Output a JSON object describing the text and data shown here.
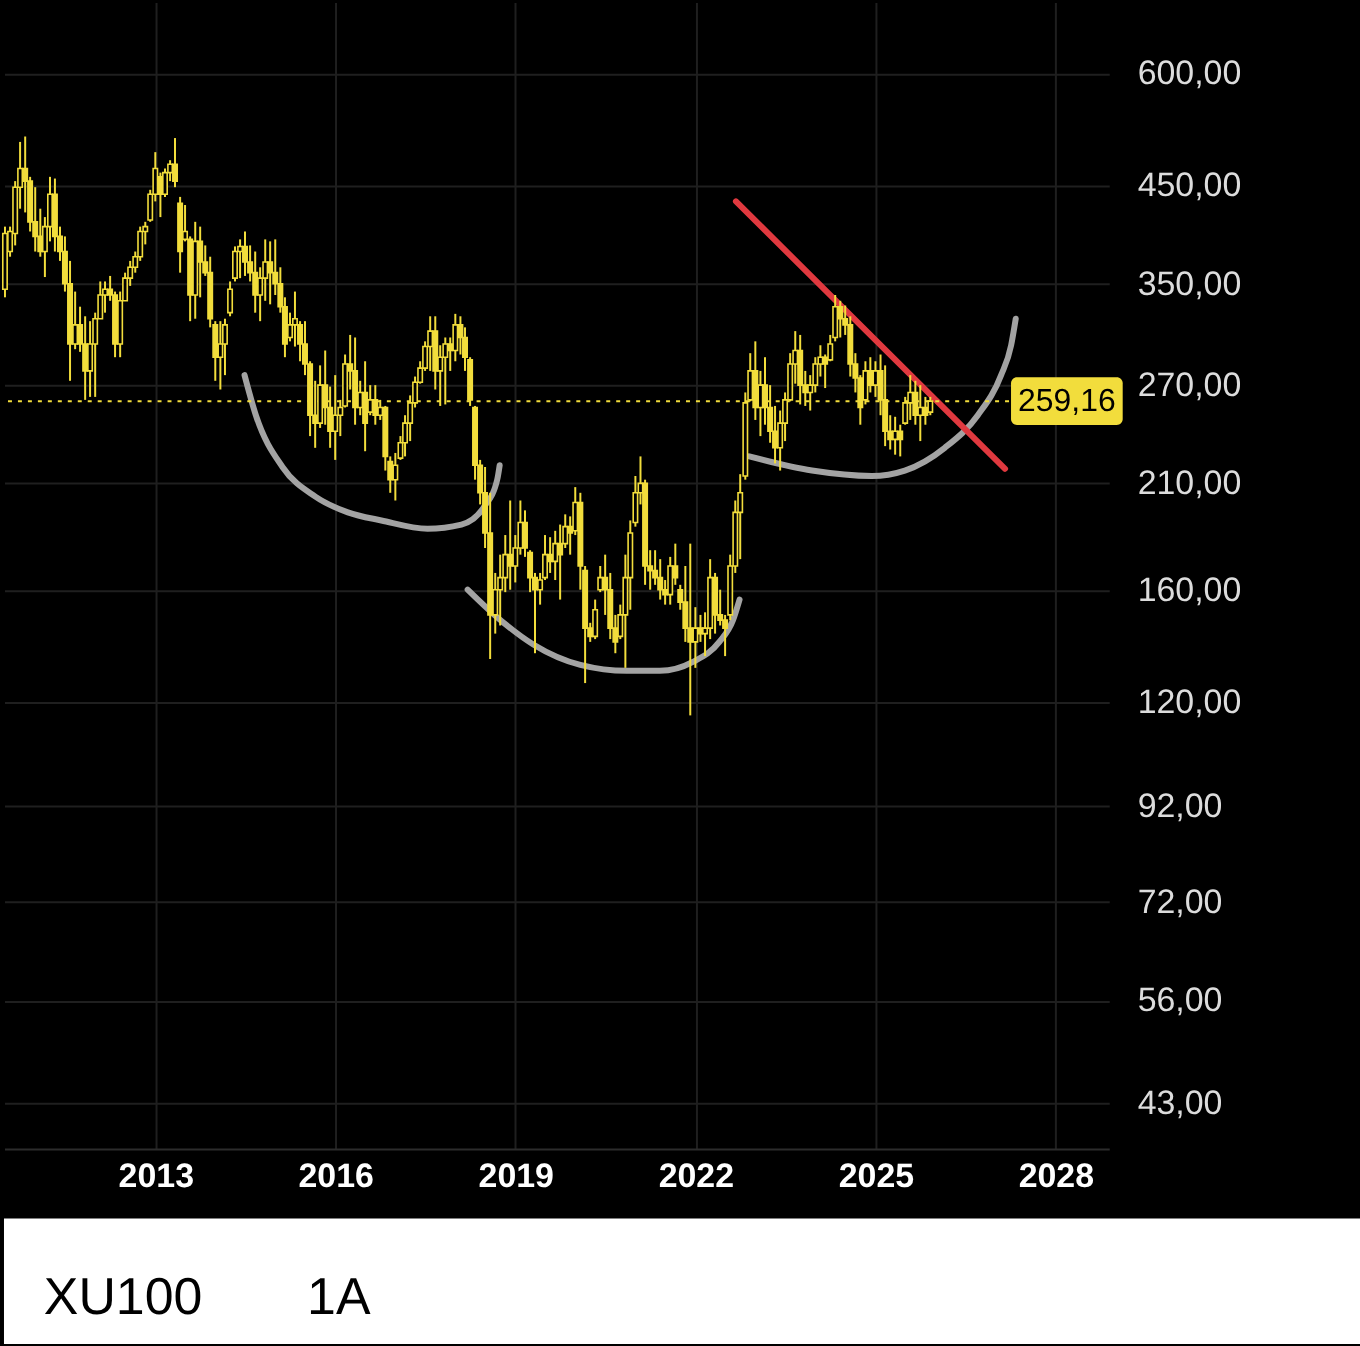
{
  "chart_data": {
    "type": "candlestick",
    "title": "XU100",
    "subtitle": "1A",
    "x": [
      "2010-07",
      "2010-08",
      "2010-09",
      "2010-10",
      "2010-11",
      "2010-12",
      "2011-01",
      "2011-02",
      "2011-03",
      "2011-04",
      "2011-05",
      "2011-06",
      "2011-07",
      "2011-08",
      "2011-09",
      "2011-10",
      "2011-11",
      "2011-12",
      "2012-01",
      "2012-02",
      "2012-03",
      "2012-04",
      "2012-05",
      "2012-06",
      "2012-07",
      "2012-08",
      "2012-09",
      "2012-10",
      "2012-11",
      "2012-12",
      "2013-01",
      "2013-02",
      "2013-03",
      "2013-04",
      "2013-05",
      "2013-06",
      "2013-07",
      "2013-08",
      "2013-09",
      "2013-10",
      "2013-11",
      "2013-12",
      "2014-01",
      "2014-02",
      "2014-03",
      "2014-04",
      "2014-05",
      "2014-06",
      "2014-07",
      "2014-08",
      "2014-09",
      "2014-10",
      "2014-11",
      "2014-12",
      "2015-01",
      "2015-02",
      "2015-03",
      "2015-04",
      "2015-05",
      "2015-06",
      "2015-07",
      "2015-08",
      "2015-09",
      "2015-10",
      "2015-11",
      "2015-12",
      "2016-01",
      "2016-02",
      "2016-03",
      "2016-04",
      "2016-05",
      "2016-06",
      "2016-07",
      "2016-08",
      "2016-09",
      "2016-10",
      "2016-11",
      "2016-12",
      "2017-01",
      "2017-02",
      "2017-03",
      "2017-04",
      "2017-05",
      "2017-06",
      "2017-07",
      "2017-08",
      "2017-09",
      "2017-10",
      "2017-11",
      "2017-12",
      "2018-01",
      "2018-02",
      "2018-03",
      "2018-04",
      "2018-05",
      "2018-06",
      "2018-07",
      "2018-08",
      "2018-09",
      "2018-10",
      "2018-11",
      "2018-12",
      "2019-01",
      "2019-02",
      "2019-03",
      "2019-04",
      "2019-05",
      "2019-06",
      "2019-07",
      "2019-08",
      "2019-09",
      "2019-10",
      "2019-11",
      "2019-12",
      "2020-01",
      "2020-02",
      "2020-03",
      "2020-04",
      "2020-05",
      "2020-06",
      "2020-07",
      "2020-08",
      "2020-09",
      "2020-10",
      "2020-11",
      "2020-12",
      "2021-01",
      "2021-02",
      "2021-03",
      "2021-04",
      "2021-05",
      "2021-06",
      "2021-07",
      "2021-08",
      "2021-09",
      "2021-10",
      "2021-11",
      "2021-12",
      "2022-01",
      "2022-02",
      "2022-03",
      "2022-04",
      "2022-05",
      "2022-06",
      "2022-07",
      "2022-08",
      "2022-09",
      "2022-10",
      "2022-11",
      "2022-12",
      "2023-01",
      "2023-02",
      "2023-03",
      "2023-04",
      "2023-05",
      "2023-06",
      "2023-07",
      "2023-08",
      "2023-09",
      "2023-10",
      "2023-11",
      "2023-12",
      "2024-01",
      "2024-02",
      "2024-03",
      "2024-04",
      "2024-05",
      "2024-06",
      "2024-07",
      "2024-08",
      "2024-09",
      "2024-10",
      "2024-11",
      "2024-12",
      "2025-01",
      "2025-02",
      "2025-03",
      "2025-04",
      "2025-05",
      "2025-06",
      "2025-07",
      "2025-08",
      "2025-09",
      "2025-10",
      "2025-11",
      "2025-12"
    ],
    "ohlc": [
      [
        345,
        405,
        338,
        398
      ],
      [
        380,
        405,
        375,
        400
      ],
      [
        398,
        455,
        386,
        448
      ],
      [
        448,
        503,
        424,
        470
      ],
      [
        470,
        510,
        420,
        455
      ],
      [
        455,
        460,
        400,
        410
      ],
      [
        410,
        448,
        380,
        395
      ],
      [
        395,
        424,
        375,
        380
      ],
      [
        380,
        415,
        356,
        405
      ],
      [
        405,
        460,
        390,
        440
      ],
      [
        440,
        458,
        380,
        395
      ],
      [
        395,
        405,
        371,
        380
      ],
      [
        380,
        395,
        343,
        350
      ],
      [
        350,
        371,
        273,
        300
      ],
      [
        300,
        343,
        296,
        315
      ],
      [
        315,
        330,
        294,
        300
      ],
      [
        300,
        322,
        260,
        280
      ],
      [
        280,
        318,
        262,
        300
      ],
      [
        300,
        325,
        262,
        320
      ],
      [
        320,
        352,
        320,
        340
      ],
      [
        340,
        352,
        325,
        345
      ],
      [
        345,
        357,
        335,
        340
      ],
      [
        340,
        343,
        290,
        300
      ],
      [
        300,
        343,
        290,
        335
      ],
      [
        335,
        360,
        335,
        355
      ],
      [
        355,
        371,
        348,
        365
      ],
      [
        365,
        380,
        360,
        375
      ],
      [
        375,
        405,
        371,
        400
      ],
      [
        400,
        410,
        387,
        405
      ],
      [
        412,
        445,
        410,
        440
      ],
      [
        440,
        490,
        432,
        470
      ],
      [
        460,
        465,
        415,
        440
      ],
      [
        440,
        470,
        437,
        465
      ],
      [
        465,
        480,
        455,
        475
      ],
      [
        475,
        508,
        448,
        455
      ],
      [
        430,
        437,
        360,
        380
      ],
      [
        392,
        428,
        390,
        400
      ],
      [
        392,
        395,
        318,
        340
      ],
      [
        340,
        410,
        320,
        390
      ],
      [
        390,
        405,
        338,
        370
      ],
      [
        370,
        386,
        357,
        360
      ],
      [
        360,
        375,
        313,
        320
      ],
      [
        315,
        318,
        273,
        290
      ],
      [
        290,
        318,
        267,
        300
      ],
      [
        300,
        320,
        277,
        315
      ],
      [
        325,
        352,
        322,
        345
      ],
      [
        355,
        385,
        352,
        380
      ],
      [
        380,
        392,
        355,
        385
      ],
      [
        385,
        400,
        357,
        370
      ],
      [
        370,
        386,
        352,
        360
      ],
      [
        360,
        380,
        325,
        340
      ],
      [
        340,
        365,
        318,
        355
      ],
      [
        355,
        392,
        335,
        370
      ],
      [
        370,
        390,
        332,
        360
      ],
      [
        360,
        392,
        340,
        350
      ],
      [
        350,
        365,
        325,
        330
      ],
      [
        330,
        338,
        290,
        300
      ],
      [
        305,
        325,
        302,
        315
      ],
      [
        315,
        343,
        298,
        320
      ],
      [
        315,
        318,
        287,
        300
      ],
      [
        300,
        318,
        277,
        285
      ],
      [
        285,
        287,
        237,
        250
      ],
      [
        250,
        273,
        230,
        245
      ],
      [
        245,
        284,
        242,
        270
      ],
      [
        270,
        295,
        244,
        255
      ],
      [
        255,
        269,
        230,
        240
      ],
      [
        240,
        277,
        223,
        250
      ],
      [
        250,
        260,
        237,
        255
      ],
      [
        256,
        292,
        255,
        285
      ],
      [
        285,
        307,
        267,
        280
      ],
      [
        280,
        305,
        244,
        255
      ],
      [
        255,
        273,
        250,
        265
      ],
      [
        265,
        287,
        228,
        245
      ],
      [
        252,
        270,
        250,
        260
      ],
      [
        260,
        270,
        244,
        250
      ],
      [
        250,
        260,
        247,
        255
      ],
      [
        255,
        256,
        217,
        225
      ],
      [
        222,
        225,
        205,
        212
      ],
      [
        212,
        227,
        201,
        220
      ],
      [
        224,
        237,
        223,
        233
      ],
      [
        233,
        250,
        225,
        245
      ],
      [
        245,
        263,
        234,
        258
      ],
      [
        258,
        276,
        255,
        272
      ],
      [
        272,
        287,
        271,
        282
      ],
      [
        282,
        302,
        280,
        298
      ],
      [
        298,
        322,
        280,
        310
      ],
      [
        310,
        322,
        267,
        280
      ],
      [
        280,
        299,
        256,
        290
      ],
      [
        290,
        305,
        257,
        300
      ],
      [
        300,
        305,
        280,
        295
      ],
      [
        295,
        324,
        287,
        315
      ],
      [
        315,
        322,
        292,
        305
      ],
      [
        305,
        313,
        280,
        290
      ],
      [
        288,
        290,
        256,
        260
      ],
      [
        255,
        256,
        212,
        220
      ],
      [
        220,
        223,
        199,
        205
      ],
      [
        205,
        219,
        178,
        185
      ],
      [
        185,
        205,
        134,
        150
      ],
      [
        150,
        167,
        143,
        160
      ],
      [
        160,
        175,
        146,
        165
      ],
      [
        165,
        184,
        159,
        175
      ],
      [
        175,
        201,
        160,
        170
      ],
      [
        170,
        184,
        163,
        178
      ],
      [
        178,
        201,
        175,
        190
      ],
      [
        190,
        196,
        174,
        178
      ],
      [
        176,
        177,
        159,
        165
      ],
      [
        165,
        167,
        136,
        160
      ],
      [
        160,
        167,
        154,
        164
      ],
      [
        165,
        184,
        164,
        175
      ],
      [
        175,
        183,
        167,
        172
      ],
      [
        172,
        186,
        164,
        180
      ],
      [
        180,
        189,
        156,
        175
      ],
      [
        180,
        194,
        178,
        188
      ],
      [
        188,
        193,
        175,
        185
      ],
      [
        186,
        208,
        184,
        200
      ],
      [
        200,
        205,
        160,
        170
      ],
      [
        168,
        170,
        126,
        145
      ],
      [
        145,
        147,
        140,
        142
      ],
      [
        142,
        156,
        141,
        152
      ],
      [
        160,
        170,
        159,
        165
      ],
      [
        165,
        175,
        150,
        160
      ],
      [
        160,
        167,
        141,
        145
      ],
      [
        145,
        150,
        136,
        140
      ],
      [
        142,
        154,
        141,
        150
      ],
      [
        150,
        175,
        131,
        165
      ],
      [
        165,
        191,
        152,
        185
      ],
      [
        190,
        214,
        188,
        205
      ],
      [
        205,
        225,
        199,
        210
      ],
      [
        210,
        212,
        162,
        170
      ],
      [
        170,
        177,
        160,
        168
      ],
      [
        168,
        177,
        162,
        165
      ],
      [
        165,
        173,
        156,
        160
      ],
      [
        160,
        164,
        154,
        158
      ],
      [
        158,
        174,
        154,
        170
      ],
      [
        170,
        180,
        162,
        165
      ],
      [
        160,
        162,
        152,
        155
      ],
      [
        155,
        170,
        140,
        145
      ],
      [
        145,
        180,
        116,
        140
      ],
      [
        140,
        153,
        131,
        145
      ],
      [
        145,
        150,
        140,
        143
      ],
      [
        143,
        151,
        135,
        145
      ],
      [
        145,
        173,
        141,
        165
      ],
      [
        165,
        167,
        143,
        150
      ],
      [
        150,
        160,
        146,
        148
      ],
      [
        148,
        150,
        135,
        145
      ],
      [
        150,
        175,
        148,
        170
      ],
      [
        170,
        201,
        167,
        195
      ],
      [
        195,
        215,
        173,
        205
      ],
      [
        214,
        265,
        212,
        258
      ],
      [
        260,
        293,
        259,
        280
      ],
      [
        280,
        302,
        247,
        255
      ],
      [
        255,
        280,
        237,
        270
      ],
      [
        270,
        290,
        244,
        255
      ],
      [
        255,
        270,
        233,
        240
      ],
      [
        240,
        256,
        221,
        230
      ],
      [
        230,
        253,
        217,
        245
      ],
      [
        245,
        265,
        234,
        260
      ],
      [
        260,
        293,
        259,
        285
      ],
      [
        285,
        310,
        271,
        295
      ],
      [
        295,
        307,
        257,
        270
      ],
      [
        270,
        280,
        256,
        265
      ],
      [
        265,
        277,
        253,
        270
      ],
      [
        270,
        290,
        265,
        285
      ],
      [
        285,
        299,
        276,
        290
      ],
      [
        290,
        292,
        268,
        285
      ],
      [
        288,
        307,
        287,
        300
      ],
      [
        305,
        340,
        302,
        330
      ],
      [
        330,
        335,
        305,
        320
      ],
      [
        320,
        331,
        307,
        315
      ],
      [
        315,
        322,
        276,
        285
      ],
      [
        285,
        293,
        265,
        275
      ],
      [
        275,
        277,
        244,
        255
      ],
      [
        260,
        287,
        257,
        280
      ],
      [
        280,
        290,
        265,
        270
      ],
      [
        270,
        287,
        262,
        280
      ],
      [
        280,
        292,
        250,
        260
      ],
      [
        260,
        284,
        231,
        240
      ],
      [
        240,
        250,
        229,
        235
      ],
      [
        235,
        249,
        226,
        240
      ],
      [
        240,
        244,
        225,
        235
      ],
      [
        245,
        262,
        244,
        258
      ],
      [
        258,
        277,
        247,
        265
      ],
      [
        265,
        273,
        244,
        250
      ],
      [
        250,
        270,
        234,
        255
      ],
      [
        255,
        262,
        244,
        250
      ],
      [
        252,
        262,
        250,
        259.16
      ]
    ],
    "color": "#f2dd3c",
    "series": [
      {
        "type": "line",
        "color": "#a3a3a3",
        "x": [
          "2014-06-28",
          "2014-09-05",
          "2015-02-14",
          "2015-09-02",
          "2016-03-18",
          "2016-10-08",
          "2017-07-16",
          "2018-02-07",
          "2018-06-27",
          "2018-09-13",
          "2018-09-28"
        ],
        "values": [
          277,
          250,
          219,
          203,
          195,
          191,
          187,
          189,
          198,
          212,
          220
        ]
      },
      {
        "type": "line",
        "color": "#a3a3a3",
        "x": [
          "2018-03-17",
          "2018-08-27",
          "2019-04-23",
          "2020-02-01",
          "2020-11-10",
          "2021-05-30",
          "2021-12-17",
          "2022-05-27",
          "2022-08-18",
          "2022-09-27"
        ],
        "values": [
          160,
          150,
          139,
          132,
          130,
          130,
          133,
          140,
          148,
          156
        ]
      },
      {
        "type": "line",
        "color": "#a3a3a3",
        "x": [
          "2022-11-25",
          "2023-12-12",
          "2024-12-10",
          "2025-06-29",
          "2026-02-27",
          "2026-09-16",
          "2027-02-05",
          "2027-04-07",
          "2027-05-05"
        ],
        "values": [
          225,
          217,
          214,
          217,
          230,
          250,
          277,
          299,
          320
        ]
      },
      {
        "type": "line",
        "color": "#e0393f",
        "x": [
          "2022-09-05",
          "2027-03-01"
        ],
        "values": [
          432,
          218
        ]
      }
    ],
    "xlim": [
      "2010-06-25",
      "2028-11-21"
    ],
    "xticks": [
      "2013",
      "2016",
      "2019",
      "2022",
      "2025",
      "2028"
    ],
    "ylim": [
      38.3,
      719.5
    ],
    "yticks": [
      {
        "value": 43,
        "label": "43,00"
      },
      {
        "value": 56,
        "label": "56,00"
      },
      {
        "value": 72,
        "label": "72,00"
      },
      {
        "value": 92,
        "label": "92,00"
      },
      {
        "value": 120,
        "label": "120,00"
      },
      {
        "value": 160,
        "label": "160,00"
      },
      {
        "value": 210,
        "label": "210,00"
      },
      {
        "value": 270,
        "label": "270,00"
      },
      {
        "value": 350,
        "label": "350,00"
      },
      {
        "value": 450,
        "label": "450,00"
      },
      {
        "value": 600,
        "label": "600,00"
      }
    ],
    "log": "y",
    "grid": true,
    "ref_lines": [
      {
        "axis": "y",
        "value": 259.16,
        "label": "259,16",
        "color": "#f2dd3c",
        "line_style": "dotted"
      }
    ]
  }
}
